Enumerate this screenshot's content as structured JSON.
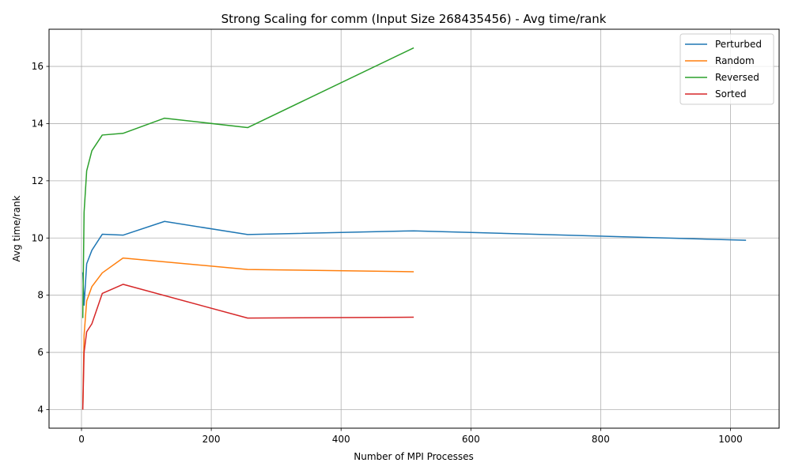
{
  "chart_data": {
    "type": "line",
    "title": "Strong Scaling for comm (Input Size 268435456) - Avg time/rank",
    "xlabel": "Number of MPI Processes",
    "ylabel": "Avg time/rank",
    "xlim": [
      -50,
      1075
    ],
    "ylim": [
      3.35,
      17.3
    ],
    "xticks": [
      0,
      200,
      400,
      600,
      800,
      1000
    ],
    "yticks": [
      4,
      6,
      8,
      10,
      12,
      14,
      16
    ],
    "grid": true,
    "legend_position": "top-right",
    "series": [
      {
        "name": "Perturbed",
        "color": "#1f77b4",
        "x": [
          2,
          4,
          8,
          16,
          32,
          64,
          128,
          256,
          512,
          1024
        ],
        "y": [
          8.8,
          7.65,
          9.1,
          9.57,
          10.13,
          10.1,
          10.58,
          10.12,
          10.25,
          9.92
        ]
      },
      {
        "name": "Random",
        "color": "#ff7f0e",
        "x": [
          2,
          4,
          8,
          16,
          32,
          64,
          256,
          512
        ],
        "y": [
          4.0,
          6.6,
          7.8,
          8.3,
          8.78,
          9.3,
          8.9,
          8.82
        ]
      },
      {
        "name": "Reversed",
        "color": "#2ca02c",
        "x": [
          2,
          4,
          8,
          16,
          32,
          64,
          128,
          256,
          512
        ],
        "y": [
          7.2,
          10.9,
          12.35,
          13.05,
          13.6,
          13.66,
          14.19,
          13.86,
          16.65
        ]
      },
      {
        "name": "Sorted",
        "color": "#d62728",
        "x": [
          2,
          4,
          8,
          16,
          32,
          64,
          256,
          512
        ],
        "y": [
          4.0,
          6.0,
          6.72,
          7.0,
          8.06,
          8.38,
          7.2,
          7.23
        ]
      }
    ]
  }
}
